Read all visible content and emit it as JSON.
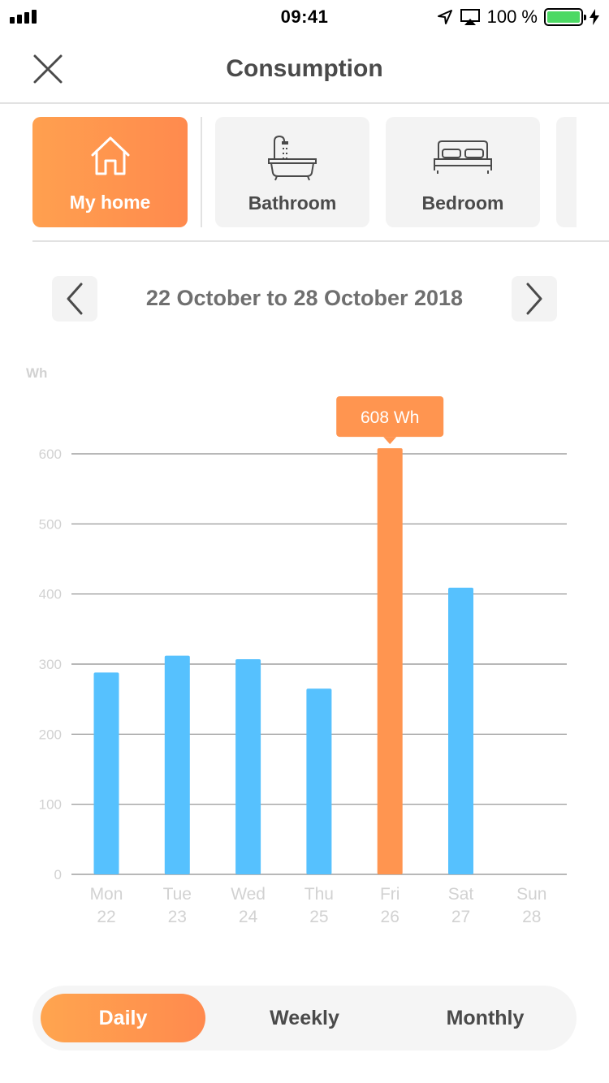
{
  "status_bar": {
    "time": "09:41",
    "battery": "100 %"
  },
  "header": {
    "title": "Consumption"
  },
  "rooms": [
    {
      "label": "My home",
      "icon": "house-icon",
      "selected": true
    },
    {
      "label": "Bathroom",
      "icon": "bathtub-icon",
      "selected": false
    },
    {
      "label": "Bedroom",
      "icon": "bed-icon",
      "selected": false
    }
  ],
  "date_nav": {
    "range": "22 October to 28 October 2018"
  },
  "colors": {
    "accent": "#ff9550",
    "bar": "#56c1fe",
    "grid": "#8e8e8e",
    "axis_text": "#d2d2d2"
  },
  "chart_data": {
    "type": "bar",
    "ylabel": "Wh",
    "ylim": [
      0,
      600
    ],
    "yticks": [
      0,
      100,
      200,
      300,
      400,
      500,
      600
    ],
    "categories": [
      {
        "day": "Mon",
        "date": "22"
      },
      {
        "day": "Tue",
        "date": "23"
      },
      {
        "day": "Wed",
        "date": "24"
      },
      {
        "day": "Thu",
        "date": "25"
      },
      {
        "day": "Fri",
        "date": "26"
      },
      {
        "day": "Sat",
        "date": "27"
      },
      {
        "day": "Sun",
        "date": "28"
      }
    ],
    "values": [
      288,
      312,
      307,
      265,
      608,
      409,
      null
    ],
    "highlight_index": 4,
    "tooltip": "608 Wh"
  },
  "period_tabs": {
    "daily": "Daily",
    "weekly": "Weekly",
    "monthly": "Monthly",
    "selected": "daily"
  }
}
